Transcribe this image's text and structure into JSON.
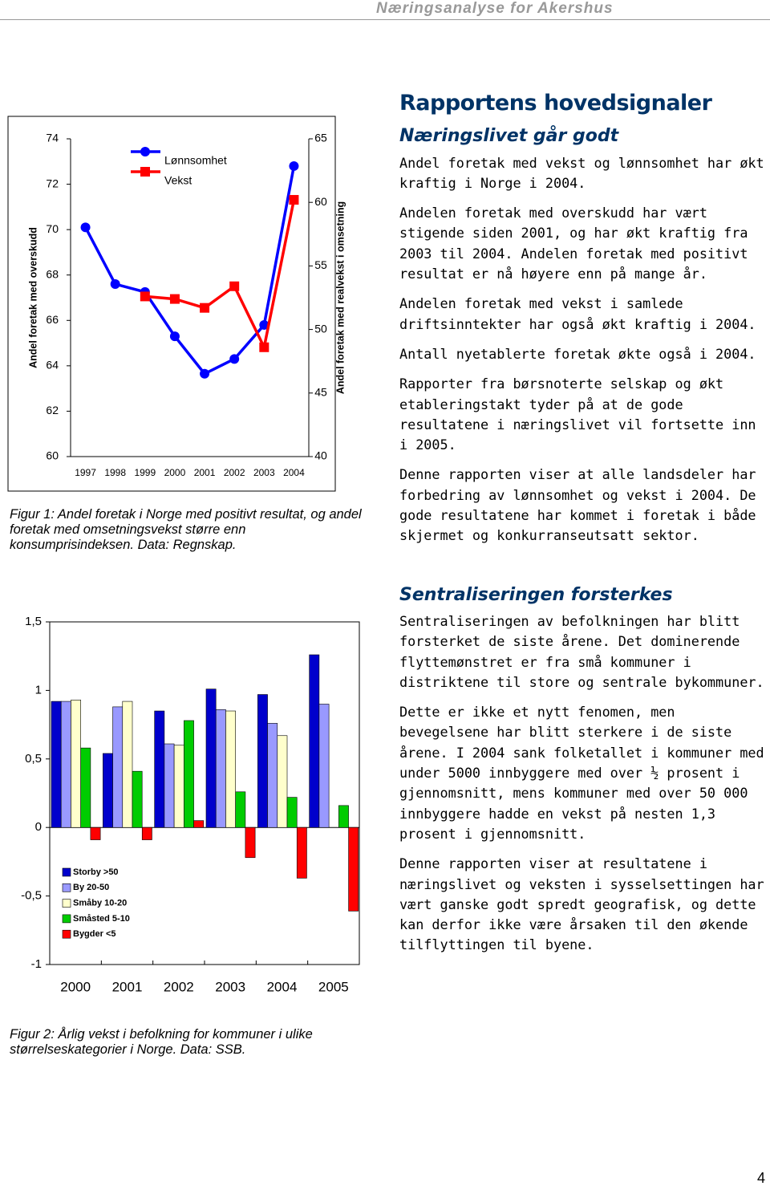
{
  "header": {
    "title": "Næringsanalyse for Akershus"
  },
  "chart_data": [
    {
      "type": "line",
      "categories": [
        "1997",
        "1998",
        "1999",
        "2000",
        "2001",
        "2002",
        "2003",
        "2004"
      ],
      "series": [
        {
          "name": "Lønnsomhet",
          "color": "#0000ff",
          "values": [
            70.1,
            67.6,
            67.25,
            65.3,
            63.65,
            64.3,
            65.8,
            72.8
          ]
        },
        {
          "name": "Vekst",
          "color": "#ff0000",
          "axis": "y2",
          "values": [
            null,
            null,
            52.6,
            52.4,
            51.7,
            53.4,
            48.6,
            60.2
          ]
        }
      ],
      "ylabel": "Andel foretak med overskudd",
      "y2label": "Andel foretak med realvekst i omsetning",
      "ylim": [
        60,
        74
      ],
      "yticks": [
        60,
        62,
        64,
        66,
        68,
        70,
        72,
        74
      ],
      "y2lim": [
        40,
        65
      ],
      "y2ticks": [
        40,
        45,
        50,
        55,
        60,
        65
      ],
      "legend": "top-left",
      "caption": "Figur 1: Andel foretak i Norge med positivt resultat, og andel foretak med omsetningsvekst større enn konsumprisindeksen. Data: Regnskap."
    },
    {
      "type": "bar",
      "categories": [
        "2000",
        "2001",
        "2002",
        "2003",
        "2004",
        "2005"
      ],
      "series": [
        {
          "name": "Storby >50",
          "color": "#0000cc",
          "values": [
            0.92,
            0.54,
            0.85,
            1.01,
            0.97,
            1.26
          ]
        },
        {
          "name": "By 20-50",
          "color": "#9999ff",
          "values": [
            0.92,
            0.88,
            0.61,
            0.86,
            0.76,
            0.9
          ]
        },
        {
          "name": "Småby 10-20",
          "color": "#ffffcc",
          "values": [
            0.93,
            0.92,
            0.6,
            0.85,
            0.67,
            null
          ]
        },
        {
          "name": "Småsted 5-10",
          "color": "#00cc00",
          "values": [
            0.58,
            0.41,
            0.78,
            0.26,
            0.22,
            0.16
          ]
        },
        {
          "name": "Bygder <5",
          "color": "#ff0000",
          "values": [
            -0.09,
            -0.09,
            0.05,
            -0.22,
            -0.37,
            -0.61
          ]
        }
      ],
      "ylim": [
        -1,
        1.5
      ],
      "yticks": [
        -1,
        {
          "value": -0.5,
          "label": "-0,5"
        },
        0,
        {
          "value": 0.5,
          "label": "0,5"
        },
        1,
        {
          "value": 1.5,
          "label": "1,5"
        }
      ],
      "legend": "bottom-left",
      "caption": "Figur 2: Årlig vekst i befolkning for kommuner i ulike størrelseskategorier i Norge.  Data: SSB."
    }
  ],
  "article": {
    "title": "Rapportens hovedsignaler",
    "sections": [
      {
        "heading": "Næringslivet går godt",
        "paragraphs": [
          "Andel foretak med vekst og lønnsomhet har økt kraftig i Norge i 2004.",
          "Andelen foretak med overskudd har vært stigende siden 2001, og har økt kraftig fra 2003 til 2004. Andelen foretak med positivt resultat er nå høyere enn på mange år.",
          "Andelen foretak med vekst i samlede driftsinntekter har også økt kraftig i 2004.",
          "Antall nyetablerte foretak økte også i 2004.",
          "Rapporter fra børsnoterte selskap og økt etableringstakt tyder på at de gode resultatene i næringslivet vil fortsette inn i 2005.",
          "Denne rapporten viser at alle landsdeler har forbedring av lønnsomhet og vekst i 2004. De gode resultatene har kommet i foretak i både skjermet og konkurranseutsatt sektor."
        ]
      },
      {
        "heading": "Sentraliseringen forsterkes",
        "paragraphs": [
          "Sentraliseringen av befolkningen har blitt forsterket de siste årene. Det dominerende flyttemønstret er fra små kommuner i distriktene til store og sentrale bykommuner.",
          "Dette er ikke et nytt fenomen, men bevegelsene har blitt sterkere i de siste årene. I 2004 sank folketallet i kommuner med under 5000 innbyggere med over ½ prosent i gjennomsnitt, mens kommuner med over 50 000 innbyggere hadde en vekst på nesten 1,3 prosent i gjennomsnitt.",
          "Denne rapporten viser at resultatene i næringslivet og veksten i sysselsettingen har vært ganske godt spredt geografisk, og dette kan derfor ikke være årsaken til den økende tilflyttingen til byene."
        ]
      }
    ]
  },
  "page_number": "4"
}
